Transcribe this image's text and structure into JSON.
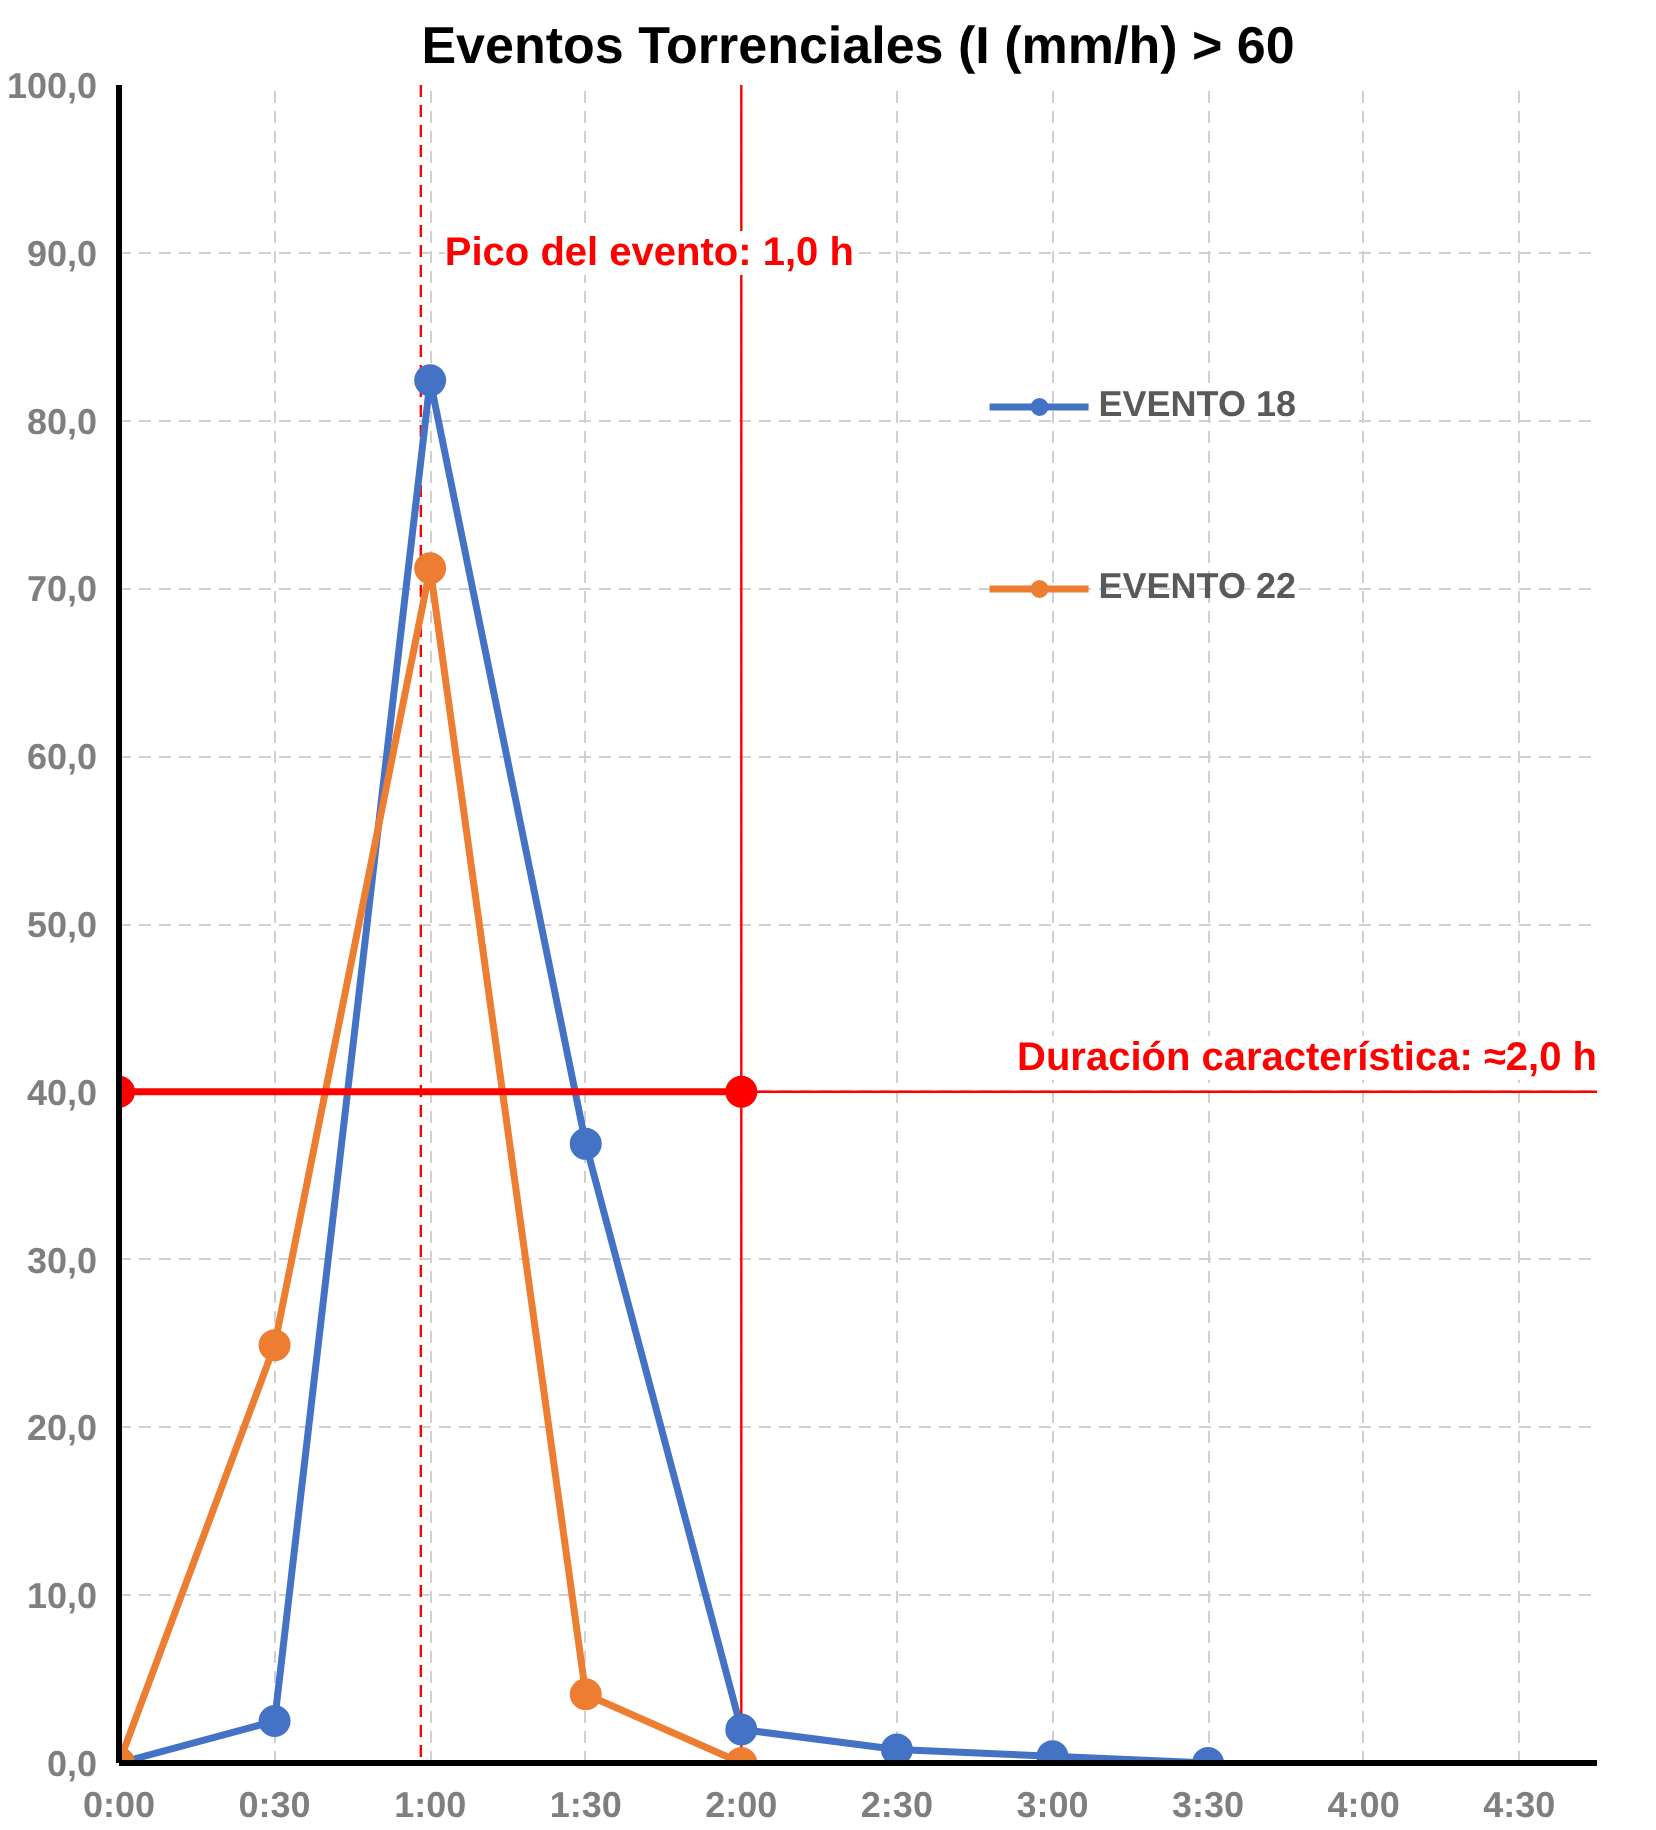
{
  "chart_data": {
    "type": "line",
    "title": "Eventos Torrenciales (I (mm/h) > 60",
    "x": [
      0,
      0.5,
      1,
      1.5,
      2,
      2.5,
      3,
      3.5
    ],
    "series": [
      {
        "name": "EVENTO 18",
        "color": "#4472c4",
        "values": [
          0,
          2.5,
          82.4,
          36.9,
          2.0,
          0.8,
          0.4,
          0
        ]
      },
      {
        "name": "EVENTO 22",
        "color": "#ed7d31",
        "values": [
          0,
          24.9,
          71.2,
          4.1,
          0,
          null,
          null,
          null
        ]
      },
      {
        "color": "#ff0000",
        "x": [
          0,
          2
        ],
        "values": [
          40,
          40
        ]
      }
    ],
    "xlim": [
      0,
      4.75
    ],
    "xticks": [
      {
        "value": 0,
        "label": "0:00"
      },
      {
        "value": 0.5,
        "label": "0:30"
      },
      {
        "value": 1,
        "label": "1:00"
      },
      {
        "value": 1.5,
        "label": "1:30"
      },
      {
        "value": 2,
        "label": "2:00"
      },
      {
        "value": 2.5,
        "label": "2:30"
      },
      {
        "value": 3,
        "label": "3:00"
      },
      {
        "value": 3.5,
        "label": "3:30"
      },
      {
        "value": 4,
        "label": "4:00"
      },
      {
        "value": 4.5,
        "label": "4:30"
      }
    ],
    "ylim": [
      0,
      100
    ],
    "yticks": [
      {
        "value": 0,
        "label": "0,0"
      },
      {
        "value": 10,
        "label": "10,0"
      },
      {
        "value": 20,
        "label": "20,0"
      },
      {
        "value": 30,
        "label": "30,0"
      },
      {
        "value": 40,
        "label": "40,0"
      },
      {
        "value": 50,
        "label": "50,0"
      },
      {
        "value": 60,
        "label": "60,0"
      },
      {
        "value": 70,
        "label": "70,0"
      },
      {
        "value": 80,
        "label": "80,0"
      },
      {
        "value": 90,
        "label": "90,0"
      },
      {
        "value": 100,
        "label": "100,0"
      }
    ],
    "ref_lines": [
      {
        "axis": "x",
        "value": 0.97,
        "label": "Pico del evento: 1,0 h",
        "color": "#ff0000",
        "line_style": "dashed"
      },
      {
        "axis": "x",
        "value": 2,
        "color": "#ff0000"
      },
      {
        "axis": "y",
        "value": 40,
        "label": "Duración característica: ≈2,0 h",
        "color": "#ff0000"
      }
    ],
    "grid": true,
    "legend": "top right",
    "marker": "circle",
    "line_style": "solid"
  }
}
